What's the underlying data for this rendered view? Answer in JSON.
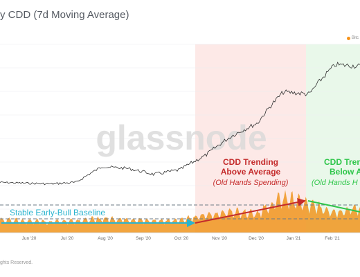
{
  "header": {
    "title": "y CDD (7d Moving Average)"
  },
  "legend": {
    "label": "Bitc"
  },
  "footer": {
    "text": "ghts Reserved."
  },
  "watermark": {
    "text": "glassnode"
  },
  "colors": {
    "price": "#2b2b2b",
    "cdd": "#f0951f",
    "red_zone": "#fde9e7",
    "green_zone": "#e9f8ea",
    "red": "#c42b2b",
    "green": "#2ec64a",
    "cyan": "#2ab4cf"
  },
  "chart_data": {
    "type": "line",
    "x": [
      "May 20 '20",
      "Jun 10 '20",
      "Jul 1 '20",
      "Jul 22 '20",
      "Aug 12 '20",
      "Sep 2 '20",
      "Sep 23 '20",
      "Oct 14 '20",
      "Nov 4 '20",
      "Nov 25 '20",
      "Dec 16 '20",
      "Jan 6 '21",
      "Jan 27 '21",
      "Feb 17 '21",
      "Mar 1 '21"
    ],
    "xtick_labels": [
      "Jun '20",
      "Jul '20",
      "Aug '20",
      "Sep '20",
      "Oct '20",
      "Nov '20",
      "Dec '20",
      "Jan '21",
      "Feb '21"
    ],
    "series": [
      {
        "name": "Bitc",
        "values": [
          9500,
          9400,
          9300,
          9500,
          11800,
          11500,
          10600,
          11300,
          13800,
          18000,
          21500,
          33000,
          32000,
          48000,
          47000
        ]
      }
    ],
    "cdd_values": [
      0.55,
      0.5,
      0.48,
      0.52,
      0.6,
      0.58,
      0.5,
      0.55,
      0.75,
      0.9,
      0.85,
      1.5,
      1.2,
      0.9,
      1.1
    ],
    "zones": [
      {
        "label": "CDD Trending Above Average",
        "note": "(Old Hands Spending)",
        "from": "Oct 25 '20",
        "to": "Jan 8 '21"
      },
      {
        "label": "CDD Trending Below Average",
        "note": "(Old Hands Holding)",
        "from": "Jan 8 '21",
        "to": "Mar 1 '21"
      }
    ],
    "annotations": {
      "baseline": "Stable Early-Bull Baseline",
      "red_line1": "CDD Trending",
      "red_line2": "Above Average",
      "red_line3": "(Old Hands Spending)",
      "green_line1": "CDD Tren",
      "green_line2": "Below Av",
      "green_line3": "(Old Hands H"
    },
    "grid": true,
    "legend_position": "top-right"
  }
}
